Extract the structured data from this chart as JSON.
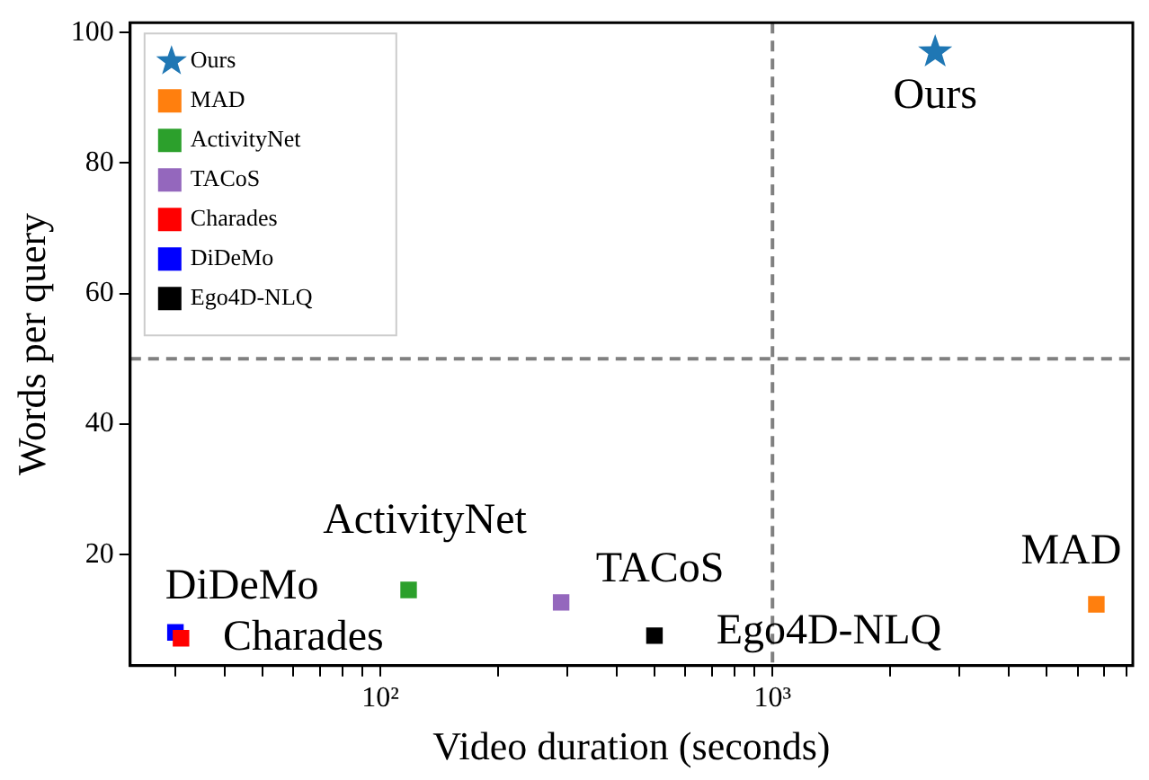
{
  "chart_data": {
    "type": "scatter",
    "xlabel": "Video duration (seconds)",
    "ylabel": "Words per query",
    "log": "x",
    "grid": false,
    "legend": "top left",
    "marker": "square",
    "xlim": [
      23,
      8300
    ],
    "ylim": [
      3,
      101.5
    ],
    "xticks": [
      {
        "value": 30,
        "label": null
      },
      {
        "value": 40,
        "label": null
      },
      {
        "value": 50,
        "label": null
      },
      {
        "value": 60,
        "label": null
      },
      {
        "value": 70,
        "label": null
      },
      {
        "value": 80,
        "label": null
      },
      {
        "value": 90,
        "label": null
      },
      {
        "value": 100,
        "label": "10²"
      },
      {
        "value": 200,
        "label": null
      },
      {
        "value": 300,
        "label": null
      },
      {
        "value": 400,
        "label": null
      },
      {
        "value": 500,
        "label": null
      },
      {
        "value": 600,
        "label": null
      },
      {
        "value": 700,
        "label": null
      },
      {
        "value": 800,
        "label": null
      },
      {
        "value": 900,
        "label": null
      },
      {
        "value": 1000,
        "label": "10³"
      },
      {
        "value": 2000,
        "label": null
      },
      {
        "value": 3000,
        "label": null
      },
      {
        "value": 4000,
        "label": null
      },
      {
        "value": 5000,
        "label": null
      },
      {
        "value": 6000,
        "label": null
      },
      {
        "value": 7000,
        "label": null
      },
      {
        "value": 8000,
        "label": null
      }
    ],
    "yticks": [
      20,
      40,
      60,
      80,
      100
    ],
    "series": [
      {
        "name": "Ours",
        "color": "#1f77b4",
        "marker": "star",
        "x": [
          2600
        ],
        "values": [
          97
        ]
      },
      {
        "name": "MAD",
        "color": "#ff7f0e",
        "x": [
          6700
        ],
        "values": [
          12.4
        ]
      },
      {
        "name": "ActivityNet",
        "color": "#2ca02c",
        "x": [
          118
        ],
        "values": [
          14.6
        ]
      },
      {
        "name": "TACoS",
        "color": "#9467bd",
        "x": [
          289
        ],
        "values": [
          12.7
        ]
      },
      {
        "name": "Charades",
        "color": "#ff0000",
        "x": [
          31
        ],
        "values": [
          7.2
        ]
      },
      {
        "name": "DiDeMo",
        "color": "#0000ff",
        "x": [
          30
        ],
        "values": [
          8.1
        ]
      },
      {
        "name": "Ego4D-NLQ",
        "color": "#000000",
        "x": [
          500
        ],
        "values": [
          7.6
        ]
      }
    ],
    "ref_lines": [
      {
        "axis": "x",
        "value": 1000,
        "color": "#808080",
        "line_style": "dashed"
      },
      {
        "axis": "y",
        "value": 50,
        "color": "#808080",
        "line_style": "dashed"
      }
    ]
  }
}
